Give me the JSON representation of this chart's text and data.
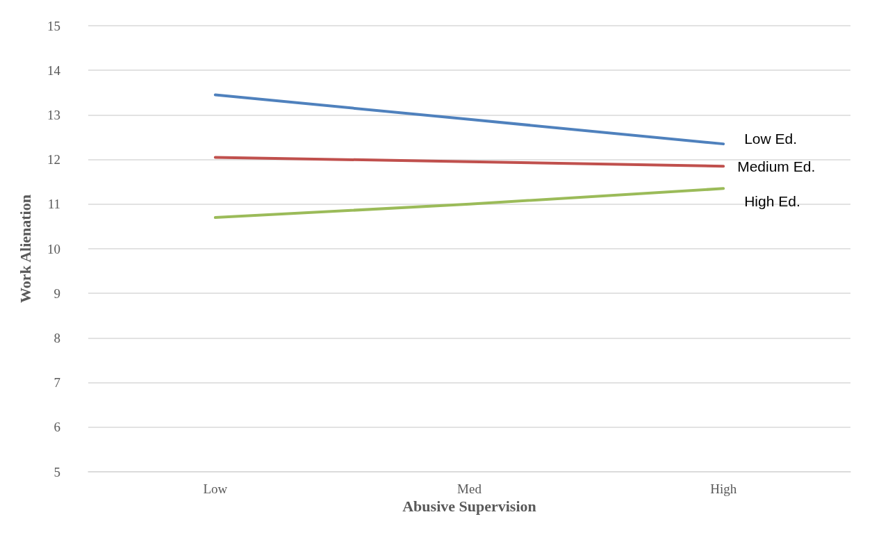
{
  "chart_data": {
    "type": "line",
    "xlabel": "Abusive Supervision",
    "ylabel": "Work Alienation",
    "categories": [
      "Low",
      "Med",
      "High"
    ],
    "series": [
      {
        "name": "Low Ed.",
        "color": "#4f81bd",
        "values": [
          13.45,
          12.9,
          12.35
        ]
      },
      {
        "name": "Medium Ed.",
        "color": "#c0504d",
        "values": [
          12.05,
          11.95,
          11.85
        ]
      },
      {
        "name": "High Ed.",
        "color": "#9bbb59",
        "values": [
          10.7,
          11.0,
          11.35
        ]
      }
    ],
    "ylim": [
      5,
      15
    ],
    "yticks": [
      5,
      6,
      7,
      8,
      9,
      10,
      11,
      12,
      13,
      14,
      15
    ],
    "grid": "y",
    "marker": "none",
    "line_style": "solid",
    "legend": false
  }
}
